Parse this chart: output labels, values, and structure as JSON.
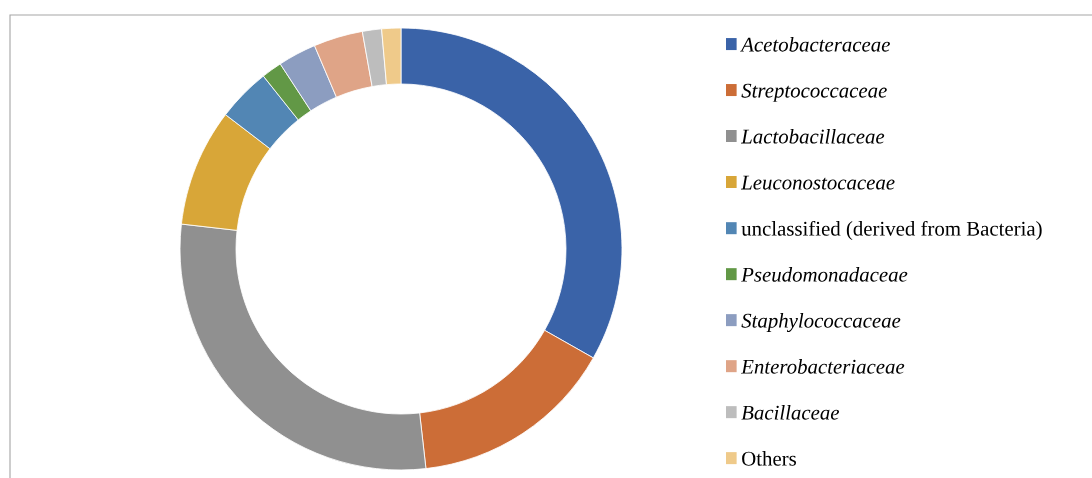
{
  "chart_data": {
    "type": "donut",
    "categories": [
      "Acetobacteraceae",
      "Streptococcaceae",
      "Lactobacillaceae",
      "Leuconostocaceae",
      "unclassified (derived from Bacteria)",
      "Pseudomonadaceae",
      "Staphylococcaceae",
      "Enterobacteriaceae",
      "Bacillaceae",
      "Others"
    ],
    "values": [
      33.2,
      15.0,
      28.6,
      8.6,
      3.9,
      1.5,
      2.8,
      3.6,
      1.4,
      1.4
    ],
    "colors": [
      "#3a63a8",
      "#cc6d37",
      "#909090",
      "#d8a638",
      "#5286b4",
      "#629846",
      "#8c9dc0",
      "#dfa487",
      "#bdbdbd",
      "#efca8a"
    ],
    "legend": "right"
  }
}
